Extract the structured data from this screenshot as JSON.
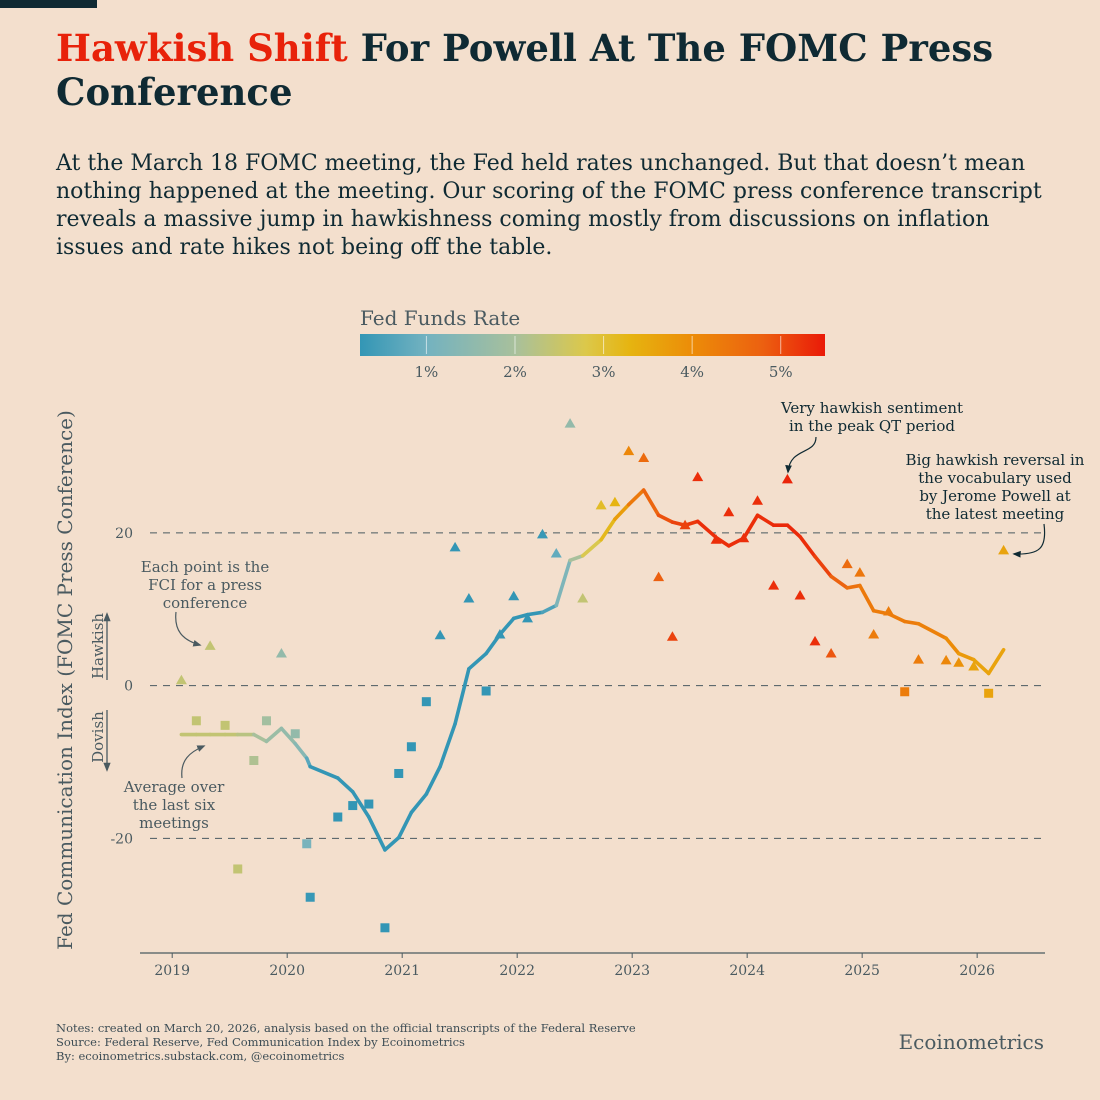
{
  "title": {
    "highlight": "Hawkish Shift",
    "rest": " For Powell At The FOMC Press Conference"
  },
  "subtitle": "At the March 18 FOMC meeting, the Fed held rates unchanged. But that doesn’t mean nothing happened at the meeting. Our scoring of the FOMC press conference transcript reveals a massive jump in hawkishness coming mostly from discussions on inflation issues and rate hikes not being off the table.",
  "colors": {
    "background": "#f3dfcd",
    "dark": "#0f2a33",
    "accent": "#e8220a",
    "muted": "#4a5a60"
  },
  "chart_data": {
    "type": "scatter",
    "title": "",
    "ylabel": "Fed Communication Index (FOMC Press Conference)",
    "xlabel": "",
    "xlim": [
      2018.72,
      2026.59
    ],
    "ylim": [
      -35,
      37
    ],
    "x_ticks": [
      2019,
      2020,
      2021,
      2022,
      2023,
      2024,
      2025,
      2026
    ],
    "x_tick_labels": [
      "2019",
      "2020",
      "2021",
      "2022",
      "2023",
      "2024",
      "2025",
      "2026"
    ],
    "y_gridlines": [
      20,
      0,
      -20
    ],
    "y_tick_labels": [
      "20",
      "0",
      "-20"
    ],
    "hawkish_label": "Hawkish",
    "dovish_label": "Dovish",
    "colorbar": {
      "title": "Fed Funds Rate",
      "range": [
        0.25,
        5.5
      ],
      "ticks": [
        1,
        2,
        3,
        4,
        5
      ],
      "tick_labels": [
        "1%",
        "2%",
        "3%",
        "4%",
        "5%"
      ]
    },
    "series": [
      {
        "name": "FCI per press conference",
        "marker": "triangle if >= 0, square if < 0",
        "points": [
          {
            "x": 2019.08,
            "y": 0.7,
            "rate": 2.4
          },
          {
            "x": 2019.21,
            "y": -4.6,
            "rate": 2.4
          },
          {
            "x": 2019.33,
            "y": 5.2,
            "rate": 2.4
          },
          {
            "x": 2019.46,
            "y": -5.2,
            "rate": 2.4
          },
          {
            "x": 2019.57,
            "y": -24.0,
            "rate": 2.4
          },
          {
            "x": 2019.71,
            "y": -9.8,
            "rate": 2.1
          },
          {
            "x": 2019.82,
            "y": -4.6,
            "rate": 1.9
          },
          {
            "x": 2019.95,
            "y": 4.2,
            "rate": 1.6
          },
          {
            "x": 2020.07,
            "y": -6.3,
            "rate": 1.6
          },
          {
            "x": 2020.17,
            "y": -20.7,
            "rate": 1.1
          },
          {
            "x": 2020.2,
            "y": -27.7,
            "rate": 0.3
          },
          {
            "x": 2020.44,
            "y": -17.2,
            "rate": 0.1
          },
          {
            "x": 2020.57,
            "y": -15.7,
            "rate": 0.1
          },
          {
            "x": 2020.71,
            "y": -15.5,
            "rate": 0.1
          },
          {
            "x": 2020.85,
            "y": -31.7,
            "rate": 0.1
          },
          {
            "x": 2020.97,
            "y": -11.5,
            "rate": 0.1
          },
          {
            "x": 2021.08,
            "y": -8.0,
            "rate": 0.1
          },
          {
            "x": 2021.21,
            "y": -2.1,
            "rate": 0.1
          },
          {
            "x": 2021.33,
            "y": 6.6,
            "rate": 0.1
          },
          {
            "x": 2021.46,
            "y": 18.1,
            "rate": 0.1
          },
          {
            "x": 2021.58,
            "y": 11.4,
            "rate": 0.1
          },
          {
            "x": 2021.73,
            "y": -0.7,
            "rate": 0.1
          },
          {
            "x": 2021.85,
            "y": 6.7,
            "rate": 0.1
          },
          {
            "x": 2021.97,
            "y": 11.7,
            "rate": 0.1
          },
          {
            "x": 2022.09,
            "y": 8.8,
            "rate": 0.1
          },
          {
            "x": 2022.22,
            "y": 19.8,
            "rate": 0.3
          },
          {
            "x": 2022.34,
            "y": 17.3,
            "rate": 0.8
          },
          {
            "x": 2022.46,
            "y": 34.3,
            "rate": 1.6
          },
          {
            "x": 2022.57,
            "y": 11.4,
            "rate": 2.4
          },
          {
            "x": 2022.73,
            "y": 23.6,
            "rate": 3.1
          },
          {
            "x": 2022.85,
            "y": 24.0,
            "rate": 3.3
          },
          {
            "x": 2022.97,
            "y": 30.7,
            "rate": 4.1
          },
          {
            "x": 2023.1,
            "y": 29.8,
            "rate": 4.6
          },
          {
            "x": 2023.23,
            "y": 14.2,
            "rate": 4.8
          },
          {
            "x": 2023.35,
            "y": 6.4,
            "rate": 5.1
          },
          {
            "x": 2023.46,
            "y": 21.0,
            "rate": 5.1
          },
          {
            "x": 2023.57,
            "y": 27.3,
            "rate": 5.3
          },
          {
            "x": 2023.73,
            "y": 19.1,
            "rate": 5.3
          },
          {
            "x": 2023.84,
            "y": 22.7,
            "rate": 5.3
          },
          {
            "x": 2023.97,
            "y": 19.3,
            "rate": 5.3
          },
          {
            "x": 2024.09,
            "y": 24.2,
            "rate": 5.3
          },
          {
            "x": 2024.23,
            "y": 13.1,
            "rate": 5.3
          },
          {
            "x": 2024.35,
            "y": 27.0,
            "rate": 5.4
          },
          {
            "x": 2024.46,
            "y": 11.8,
            "rate": 5.3
          },
          {
            "x": 2024.59,
            "y": 5.8,
            "rate": 5.3
          },
          {
            "x": 2024.73,
            "y": 4.2,
            "rate": 4.9
          },
          {
            "x": 2024.87,
            "y": 15.9,
            "rate": 4.6
          },
          {
            "x": 2024.98,
            "y": 14.8,
            "rate": 4.4
          },
          {
            "x": 2025.1,
            "y": 6.7,
            "rate": 4.3
          },
          {
            "x": 2025.23,
            "y": 9.7,
            "rate": 4.3
          },
          {
            "x": 2025.37,
            "y": -0.8,
            "rate": 4.3
          },
          {
            "x": 2025.49,
            "y": 3.4,
            "rate": 4.3
          },
          {
            "x": 2025.73,
            "y": 3.3,
            "rate": 4.1
          },
          {
            "x": 2025.84,
            "y": 3.0,
            "rate": 3.9
          },
          {
            "x": 2025.97,
            "y": 2.5,
            "rate": 3.6
          },
          {
            "x": 2026.1,
            "y": -1.0,
            "rate": 3.6
          },
          {
            "x": 2026.23,
            "y": 17.7,
            "rate": 3.6
          }
        ]
      },
      {
        "name": "Average over the last six meetings",
        "type": "line",
        "values": [
          -6.4,
          -6.4,
          -6.4,
          -6.4,
          -6.4,
          -6.4,
          -7.3,
          -5.6,
          -7.6,
          -9.5,
          -10.6,
          -12.1,
          -13.9,
          -17.2,
          -21.5,
          -19.9,
          -16.6,
          -14.2,
          -10.6,
          -5.0,
          2.2,
          4.2,
          6.7,
          8.8,
          9.3,
          9.6,
          10.5,
          16.4,
          17.0,
          19.1,
          21.8,
          23.7,
          25.6,
          22.3,
          21.4,
          21.0,
          21.5,
          19.4,
          18.3,
          19.3,
          22.3,
          21.0,
          21.0,
          19.5,
          16.9,
          14.3,
          12.8,
          13.1,
          9.8,
          9.4,
          8.4,
          8.1,
          6.2,
          4.2,
          3.4,
          1.6,
          4.7
        ]
      }
    ],
    "annotations": {
      "points": [
        "Each point is the",
        "FCI for a press",
        "conference"
      ],
      "average": [
        "Average over",
        "the last six",
        "meetings"
      ],
      "peak_qt": [
        "Very hawkish sentiment",
        "in the peak QT period"
      ],
      "reversal": [
        "Big hawkish reversal in",
        "the vocabulary used",
        "by Jerome Powell at",
        "the latest meeting"
      ]
    }
  },
  "footer": {
    "notes": "Notes: created on March 20, 2026, analysis based on the official transcripts of the Federal Reserve",
    "source": "Source: Federal Reserve, Fed Communication Index by Ecoinometrics",
    "by": "By: ecoinometrics.substack.com, @ecoinometrics",
    "brand": "Ecoinometrics"
  }
}
